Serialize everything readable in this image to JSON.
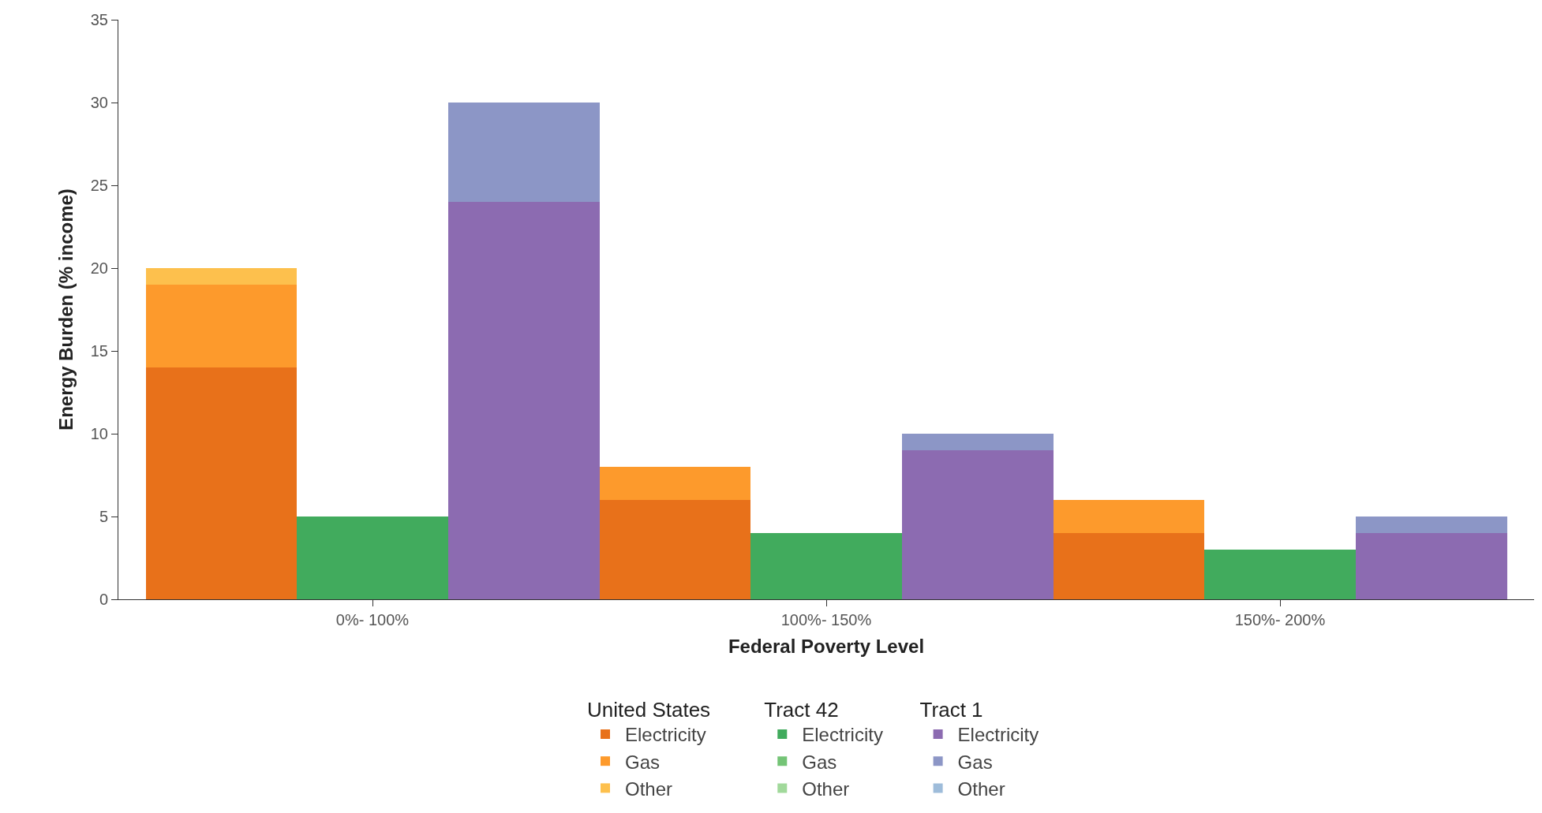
{
  "chart_data": {
    "type": "bar",
    "xlabel": "Federal Poverty Level",
    "ylabel": "Energy Burden (% income)",
    "categories": [
      "0%- 100%",
      "100%- 150%",
      "150%- 200%"
    ],
    "annotations": [
      "United States",
      "Tract 42",
      "Tract 1"
    ],
    "series": [
      {
        "name": "Electricity",
        "color": "#e8711a",
        "values": [
          14,
          6,
          4
        ],
        "base": [
          0,
          0,
          0
        ]
      },
      {
        "name": "Gas",
        "color": "#fd9a2c",
        "values": [
          5,
          2,
          2
        ],
        "base": [
          14,
          6,
          4
        ]
      },
      {
        "name": "Other",
        "color": "#fdc04d",
        "values": [
          1,
          null,
          null
        ],
        "base": [
          19,
          null,
          null
        ]
      },
      {
        "name": "Electricity",
        "color": "#41ab5d",
        "values": [
          5,
          4,
          3
        ],
        "base": [
          0,
          0,
          0
        ]
      },
      {
        "name": "Gas",
        "color": "#74c476",
        "values": [
          null,
          null,
          null
        ],
        "base": [
          null,
          null,
          null
        ]
      },
      {
        "name": "Other",
        "color": "#a1d99b",
        "values": [
          null,
          null,
          null
        ],
        "base": [
          null,
          null,
          null
        ]
      },
      {
        "name": "Electricity",
        "color": "#8c6bb1",
        "values": [
          24,
          9,
          4
        ],
        "base": [
          0,
          0,
          0
        ]
      },
      {
        "name": "Gas",
        "color": "#8c96c6",
        "values": [
          6,
          1,
          1
        ],
        "base": [
          24,
          9,
          4
        ]
      },
      {
        "name": "Other",
        "color": "#9ebcda",
        "values": [
          null,
          null,
          null
        ],
        "base": [
          null,
          null,
          null
        ]
      }
    ],
    "ylim": [
      0,
      35
    ],
    "yticks": [
      0,
      5,
      10,
      15,
      20,
      25,
      30,
      35
    ],
    "legend": "bottom"
  }
}
